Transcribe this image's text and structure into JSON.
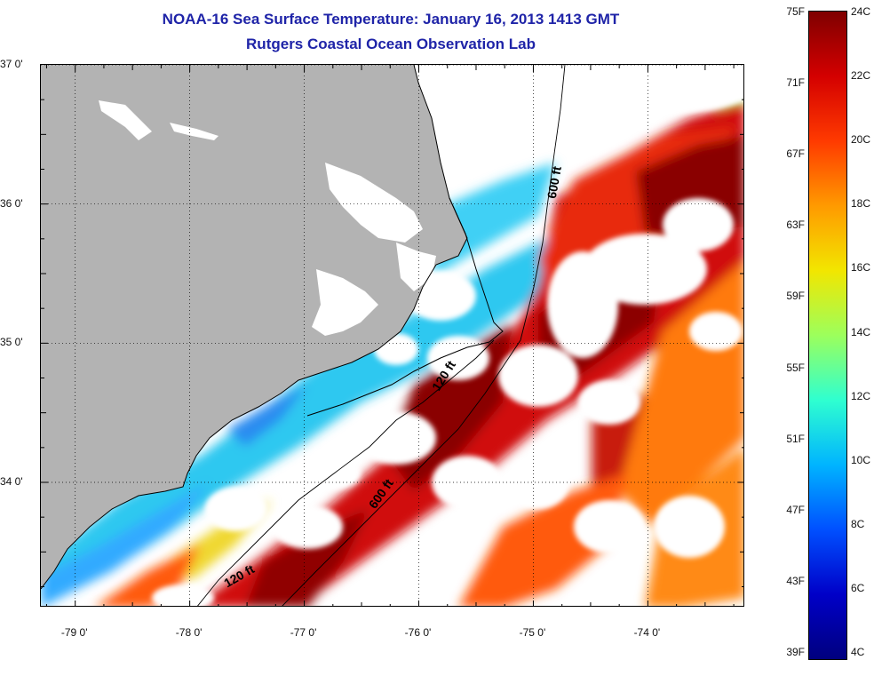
{
  "header": {
    "title": "NOAA-16 Sea Surface Temperature:  January 16, 2013 1413 GMT",
    "subtitle": "Rutgers Coastal Ocean Observation Lab"
  },
  "map": {
    "lat_labels": [
      {
        "text": "37 0'",
        "value": 37
      },
      {
        "text": "36 0'",
        "value": 36
      },
      {
        "text": "35 0'",
        "value": 35
      },
      {
        "text": "34 0'",
        "value": 34
      }
    ],
    "lon_labels": [
      {
        "text": "-79 0'",
        "value": -79
      },
      {
        "text": "-78 0'",
        "value": -78
      },
      {
        "text": "-77 0'",
        "value": -77
      },
      {
        "text": "-76 0'",
        "value": -76
      },
      {
        "text": "-75 0'",
        "value": -75
      },
      {
        "text": "-74 0'",
        "value": -74
      }
    ],
    "lat_range": [
      33.1,
      37.0
    ],
    "lon_range": [
      -79.3,
      -73.15
    ],
    "isobath_labels": [
      {
        "text": "600 ft",
        "lon": -74.78,
        "lat": 36.15
      },
      {
        "text": "120 ft",
        "lon": -75.75,
        "lat": 34.75
      },
      {
        "text": "600 ft",
        "lon": -76.3,
        "lat": 33.9
      },
      {
        "text": "120 ft",
        "lon": -77.55,
        "lat": 33.3
      }
    ],
    "colors": {
      "land": "#b3b3b3",
      "cloud": "#ffffff",
      "coast": "#000000"
    }
  },
  "colorbar": {
    "fahrenheit_labels": [
      "75F",
      "71F",
      "67F",
      "63F",
      "59F",
      "55F",
      "51F",
      "47F",
      "43F",
      "39F"
    ],
    "celsius_labels": [
      "24C",
      "22C",
      "20C",
      "18C",
      "16C",
      "14C",
      "12C",
      "10C",
      "8C",
      "6C",
      "4C"
    ],
    "range_c": [
      4,
      24
    ],
    "colors": [
      "#7f0000",
      "#d40000",
      "#ff3a00",
      "#ff9a00",
      "#f2e600",
      "#9cff5c",
      "#2fffd0",
      "#00b4ff",
      "#0050ff",
      "#0000c8",
      "#00007f"
    ]
  }
}
